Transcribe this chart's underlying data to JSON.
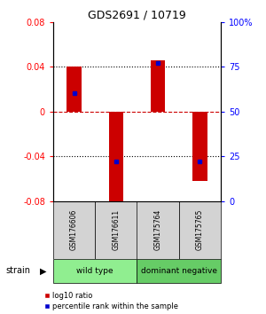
{
  "title": "GDS2691 / 10719",
  "samples": [
    "GSM176606",
    "GSM176611",
    "GSM175764",
    "GSM175765"
  ],
  "log10_ratios": [
    0.04,
    -0.085,
    0.046,
    -0.062
  ],
  "percentile_ranks": [
    0.6,
    0.22,
    0.77,
    0.22
  ],
  "ylim": [
    -0.08,
    0.08
  ],
  "y_ticks_left": [
    -0.08,
    -0.04,
    0,
    0.04,
    0.08
  ],
  "y_ticks_right": [
    0,
    25,
    50,
    75,
    100
  ],
  "bar_color": "#cc0000",
  "percentile_color": "#0000cc",
  "zero_line_color": "#cc0000",
  "grid_color": "#000000",
  "groups": [
    {
      "label": "wild type",
      "samples": [
        0,
        1
      ],
      "color": "#90ee90"
    },
    {
      "label": "dominant negative",
      "samples": [
        2,
        3
      ],
      "color": "#66cc66"
    }
  ],
  "strain_label": "strain",
  "legend": [
    {
      "label": "log10 ratio",
      "color": "#cc0000"
    },
    {
      "label": "percentile rank within the sample",
      "color": "#0000cc"
    }
  ],
  "bar_width": 0.35
}
